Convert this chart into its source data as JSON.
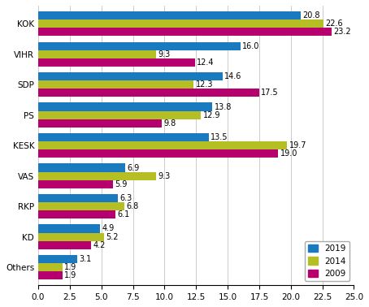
{
  "categories": [
    "KOK",
    "VIHR",
    "SDP",
    "PS",
    "KESK",
    "VAS",
    "RKP",
    "KD",
    "Others"
  ],
  "values_2019": [
    20.8,
    16.0,
    14.6,
    13.8,
    13.5,
    6.9,
    6.3,
    4.9,
    3.1
  ],
  "values_2014": [
    22.6,
    9.3,
    12.3,
    12.9,
    19.7,
    9.3,
    6.8,
    5.2,
    1.9
  ],
  "values_2009": [
    23.2,
    12.4,
    17.5,
    9.8,
    19.0,
    5.9,
    6.1,
    4.2,
    1.9
  ],
  "color_2019": "#1a7abf",
  "color_2014": "#b5be23",
  "color_2009": "#b5006e",
  "xlim": [
    0,
    25.0
  ],
  "xticks": [
    0.0,
    2.5,
    5.0,
    7.5,
    10.0,
    12.5,
    15.0,
    17.5,
    20.0,
    22.5,
    25.0
  ],
  "xtick_labels": [
    "0.0",
    "2.5",
    "5.0",
    "7.5",
    "10.0",
    "12.5",
    "15.0",
    "17.5",
    "20.0",
    "22.5",
    "25.0"
  ],
  "legend_labels": [
    "2019",
    "2014",
    "2009"
  ],
  "bar_height": 0.27,
  "label_fontsize": 7,
  "tick_fontsize": 7.5,
  "legend_fontsize": 7.5
}
